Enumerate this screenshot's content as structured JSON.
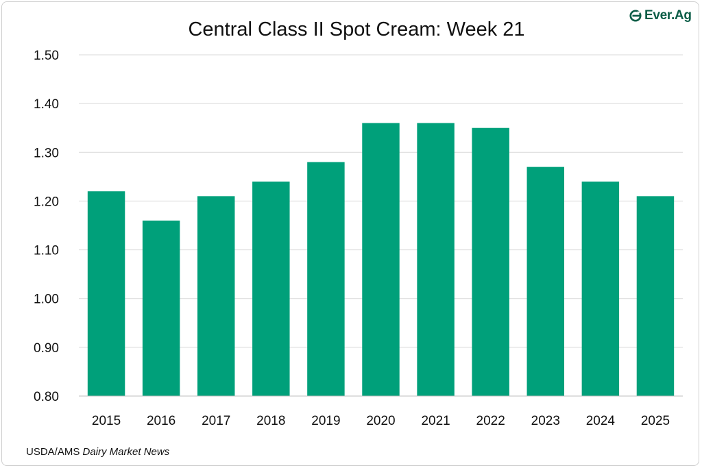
{
  "logo": {
    "text": "Ever.Ag",
    "color": "#0b5d47"
  },
  "source": {
    "prefix": "USDA/AMS ",
    "publication": "Dairy Market News"
  },
  "chart_data": {
    "type": "bar",
    "title": "Central Class II Spot Cream: Week 21",
    "xlabel": "",
    "ylabel": "",
    "categories": [
      "2015",
      "2016",
      "2017",
      "2018",
      "2019",
      "2020",
      "2021",
      "2022",
      "2023",
      "2024",
      "2025"
    ],
    "values": [
      1.22,
      1.16,
      1.21,
      1.24,
      1.28,
      1.36,
      1.36,
      1.35,
      1.27,
      1.24,
      1.21
    ],
    "ylim": [
      0.8,
      1.5
    ],
    "yticks": [
      "0.80",
      "0.90",
      "1.00",
      "1.10",
      "1.20",
      "1.30",
      "1.40",
      "1.50"
    ],
    "grid": true,
    "legend": "none",
    "bar_color": "#00a07a",
    "grid_color": "#d9d9d9"
  }
}
